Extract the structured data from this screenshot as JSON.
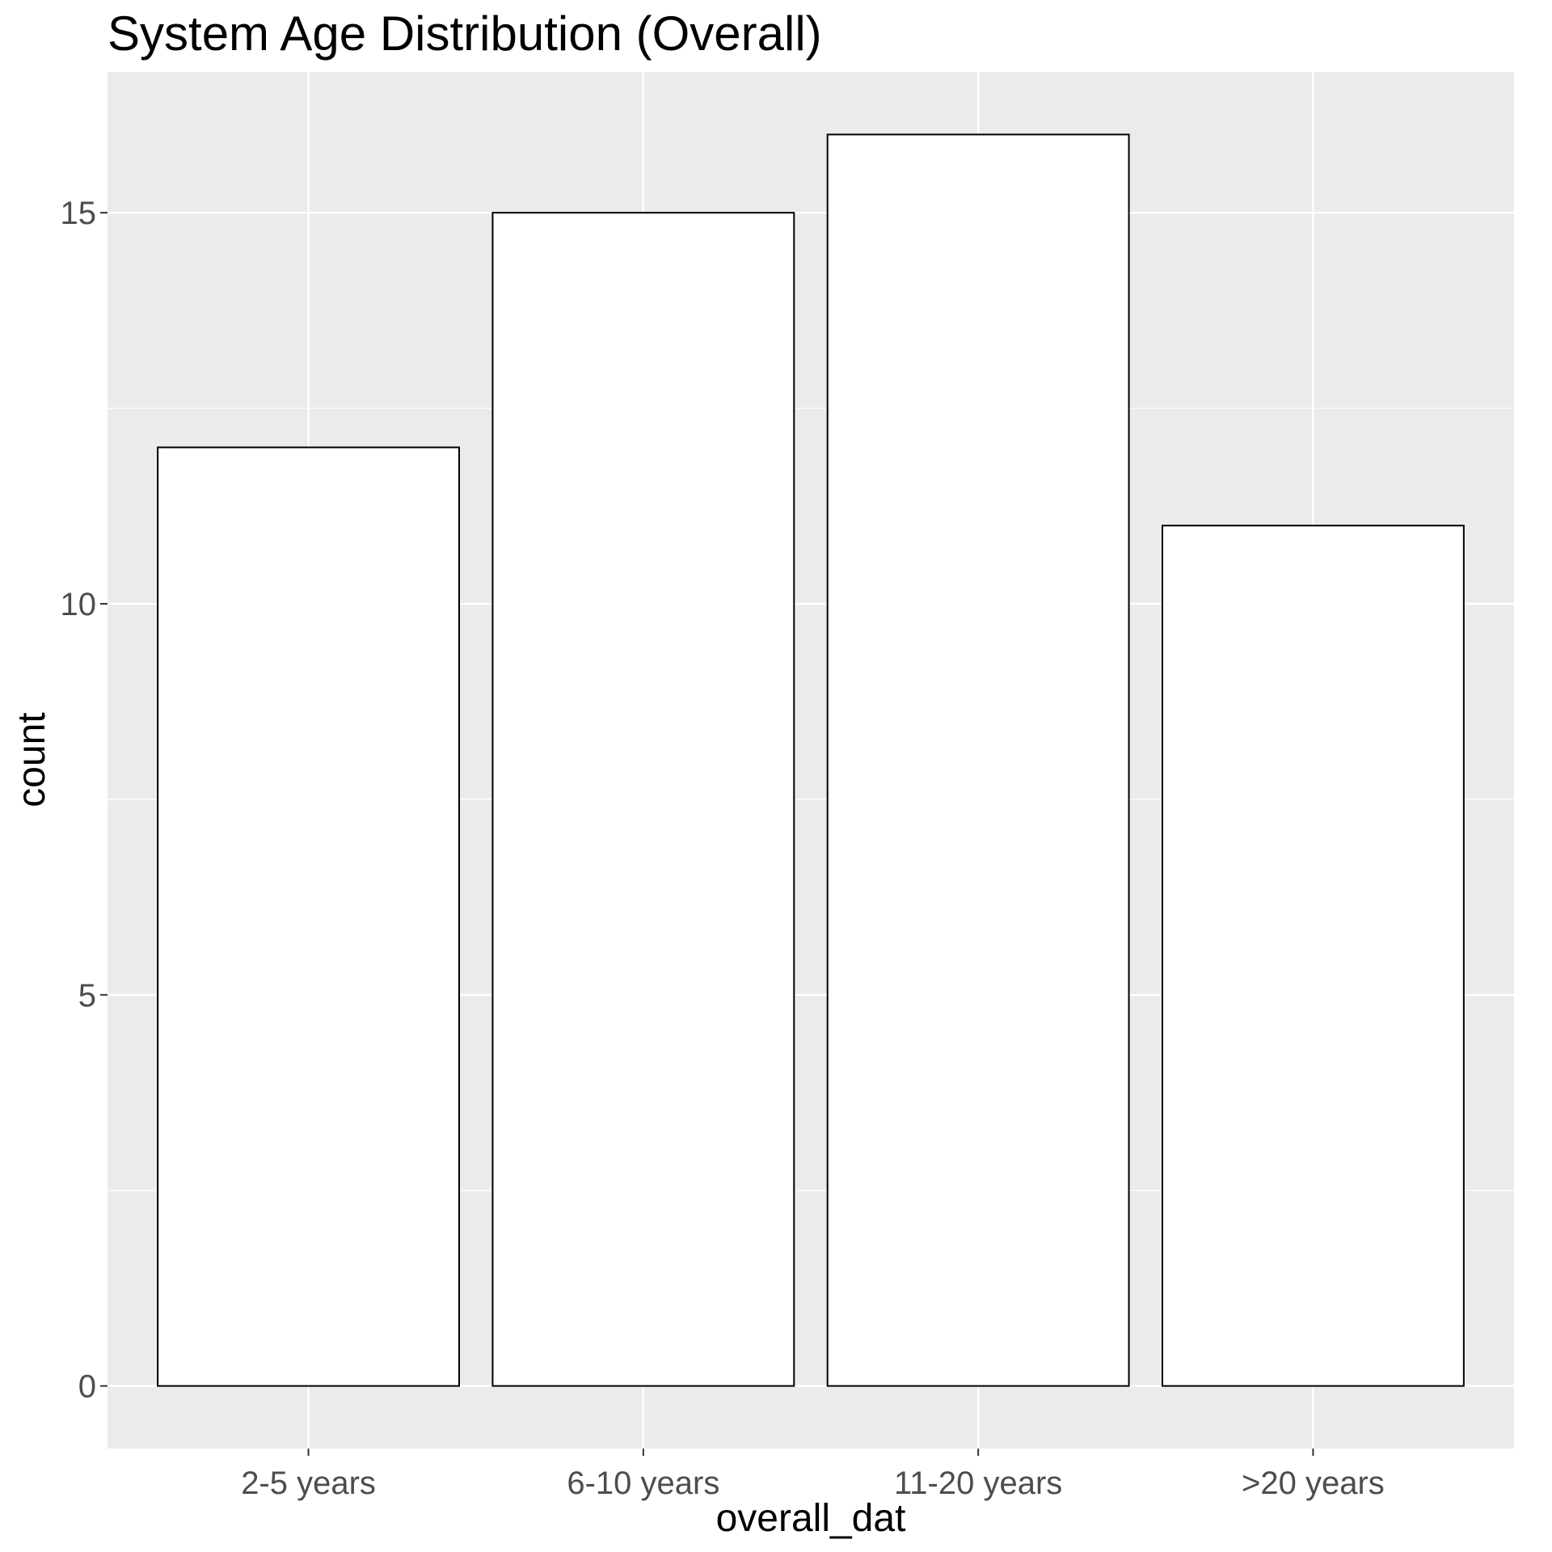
{
  "chart_data": {
    "type": "bar",
    "title": "System Age Distribution (Overall)",
    "xlabel": "overall_dat",
    "ylabel": "count",
    "categories": [
      "2-5 years",
      "6-10 years",
      "11-20 years",
      ">20 years"
    ],
    "values": [
      12,
      15,
      16,
      11
    ],
    "ylim": [
      -0.8,
      16.8
    ],
    "yticks": [
      0,
      5,
      10,
      15
    ],
    "ytick_labels": [
      "0",
      "5",
      "10",
      "15"
    ],
    "grid": true,
    "colors": {
      "panel_background": "#ebebeb",
      "grid": "#ffffff",
      "bar_fill": "#ffffff",
      "bar_outline": "#000000",
      "tick_label": "#4d4d4d"
    }
  }
}
